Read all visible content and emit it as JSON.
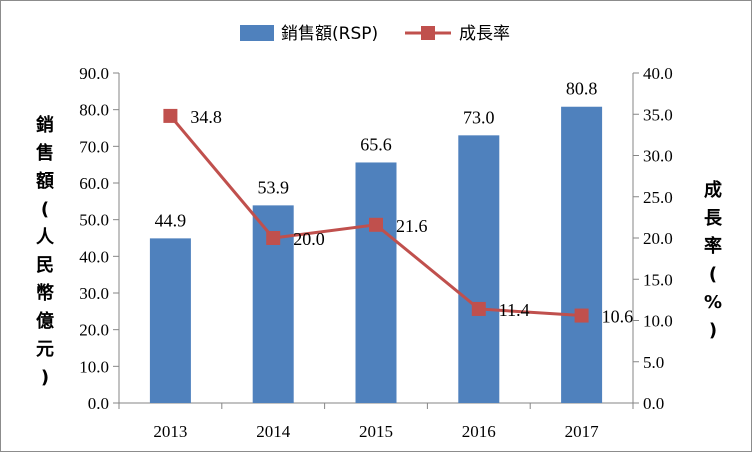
{
  "chart_data": {
    "type": "bar+line",
    "categories": [
      "2013",
      "2014",
      "2015",
      "2016",
      "2017"
    ],
    "series": [
      {
        "name": "銷售額(RSP)",
        "type": "bar",
        "axis": "left",
        "color": "#4f81bd",
        "values": [
          44.9,
          53.9,
          65.6,
          73.0,
          80.8
        ],
        "labels": [
          "44.9",
          "53.9",
          "65.6",
          "73.0",
          "80.8"
        ]
      },
      {
        "name": "成長率",
        "type": "line",
        "axis": "right",
        "color": "#c0504d",
        "values": [
          34.8,
          20.0,
          21.6,
          11.4,
          10.6
        ],
        "labels": [
          "34.8",
          "20.0",
          "21.6",
          "11.4",
          "10.6"
        ]
      }
    ],
    "y_left": {
      "label_chars": [
        "銷",
        "售",
        "額",
        "(",
        "人",
        "民",
        "幣",
        "億",
        "元",
        ")"
      ],
      "min": 0,
      "max": 90,
      "step": 10,
      "ticks": [
        "0.0",
        "10.0",
        "20.0",
        "30.0",
        "40.0",
        "50.0",
        "60.0",
        "70.0",
        "80.0",
        "90.0"
      ]
    },
    "y_right": {
      "label_chars": [
        "成",
        "長",
        "率",
        "(",
        "%",
        ")"
      ],
      "min": 0,
      "max": 40,
      "step": 5,
      "ticks": [
        "0.0",
        "5.0",
        "10.0",
        "15.0",
        "20.0",
        "25.0",
        "30.0",
        "35.0",
        "40.0"
      ]
    },
    "legend_position": "top",
    "grid": false
  }
}
